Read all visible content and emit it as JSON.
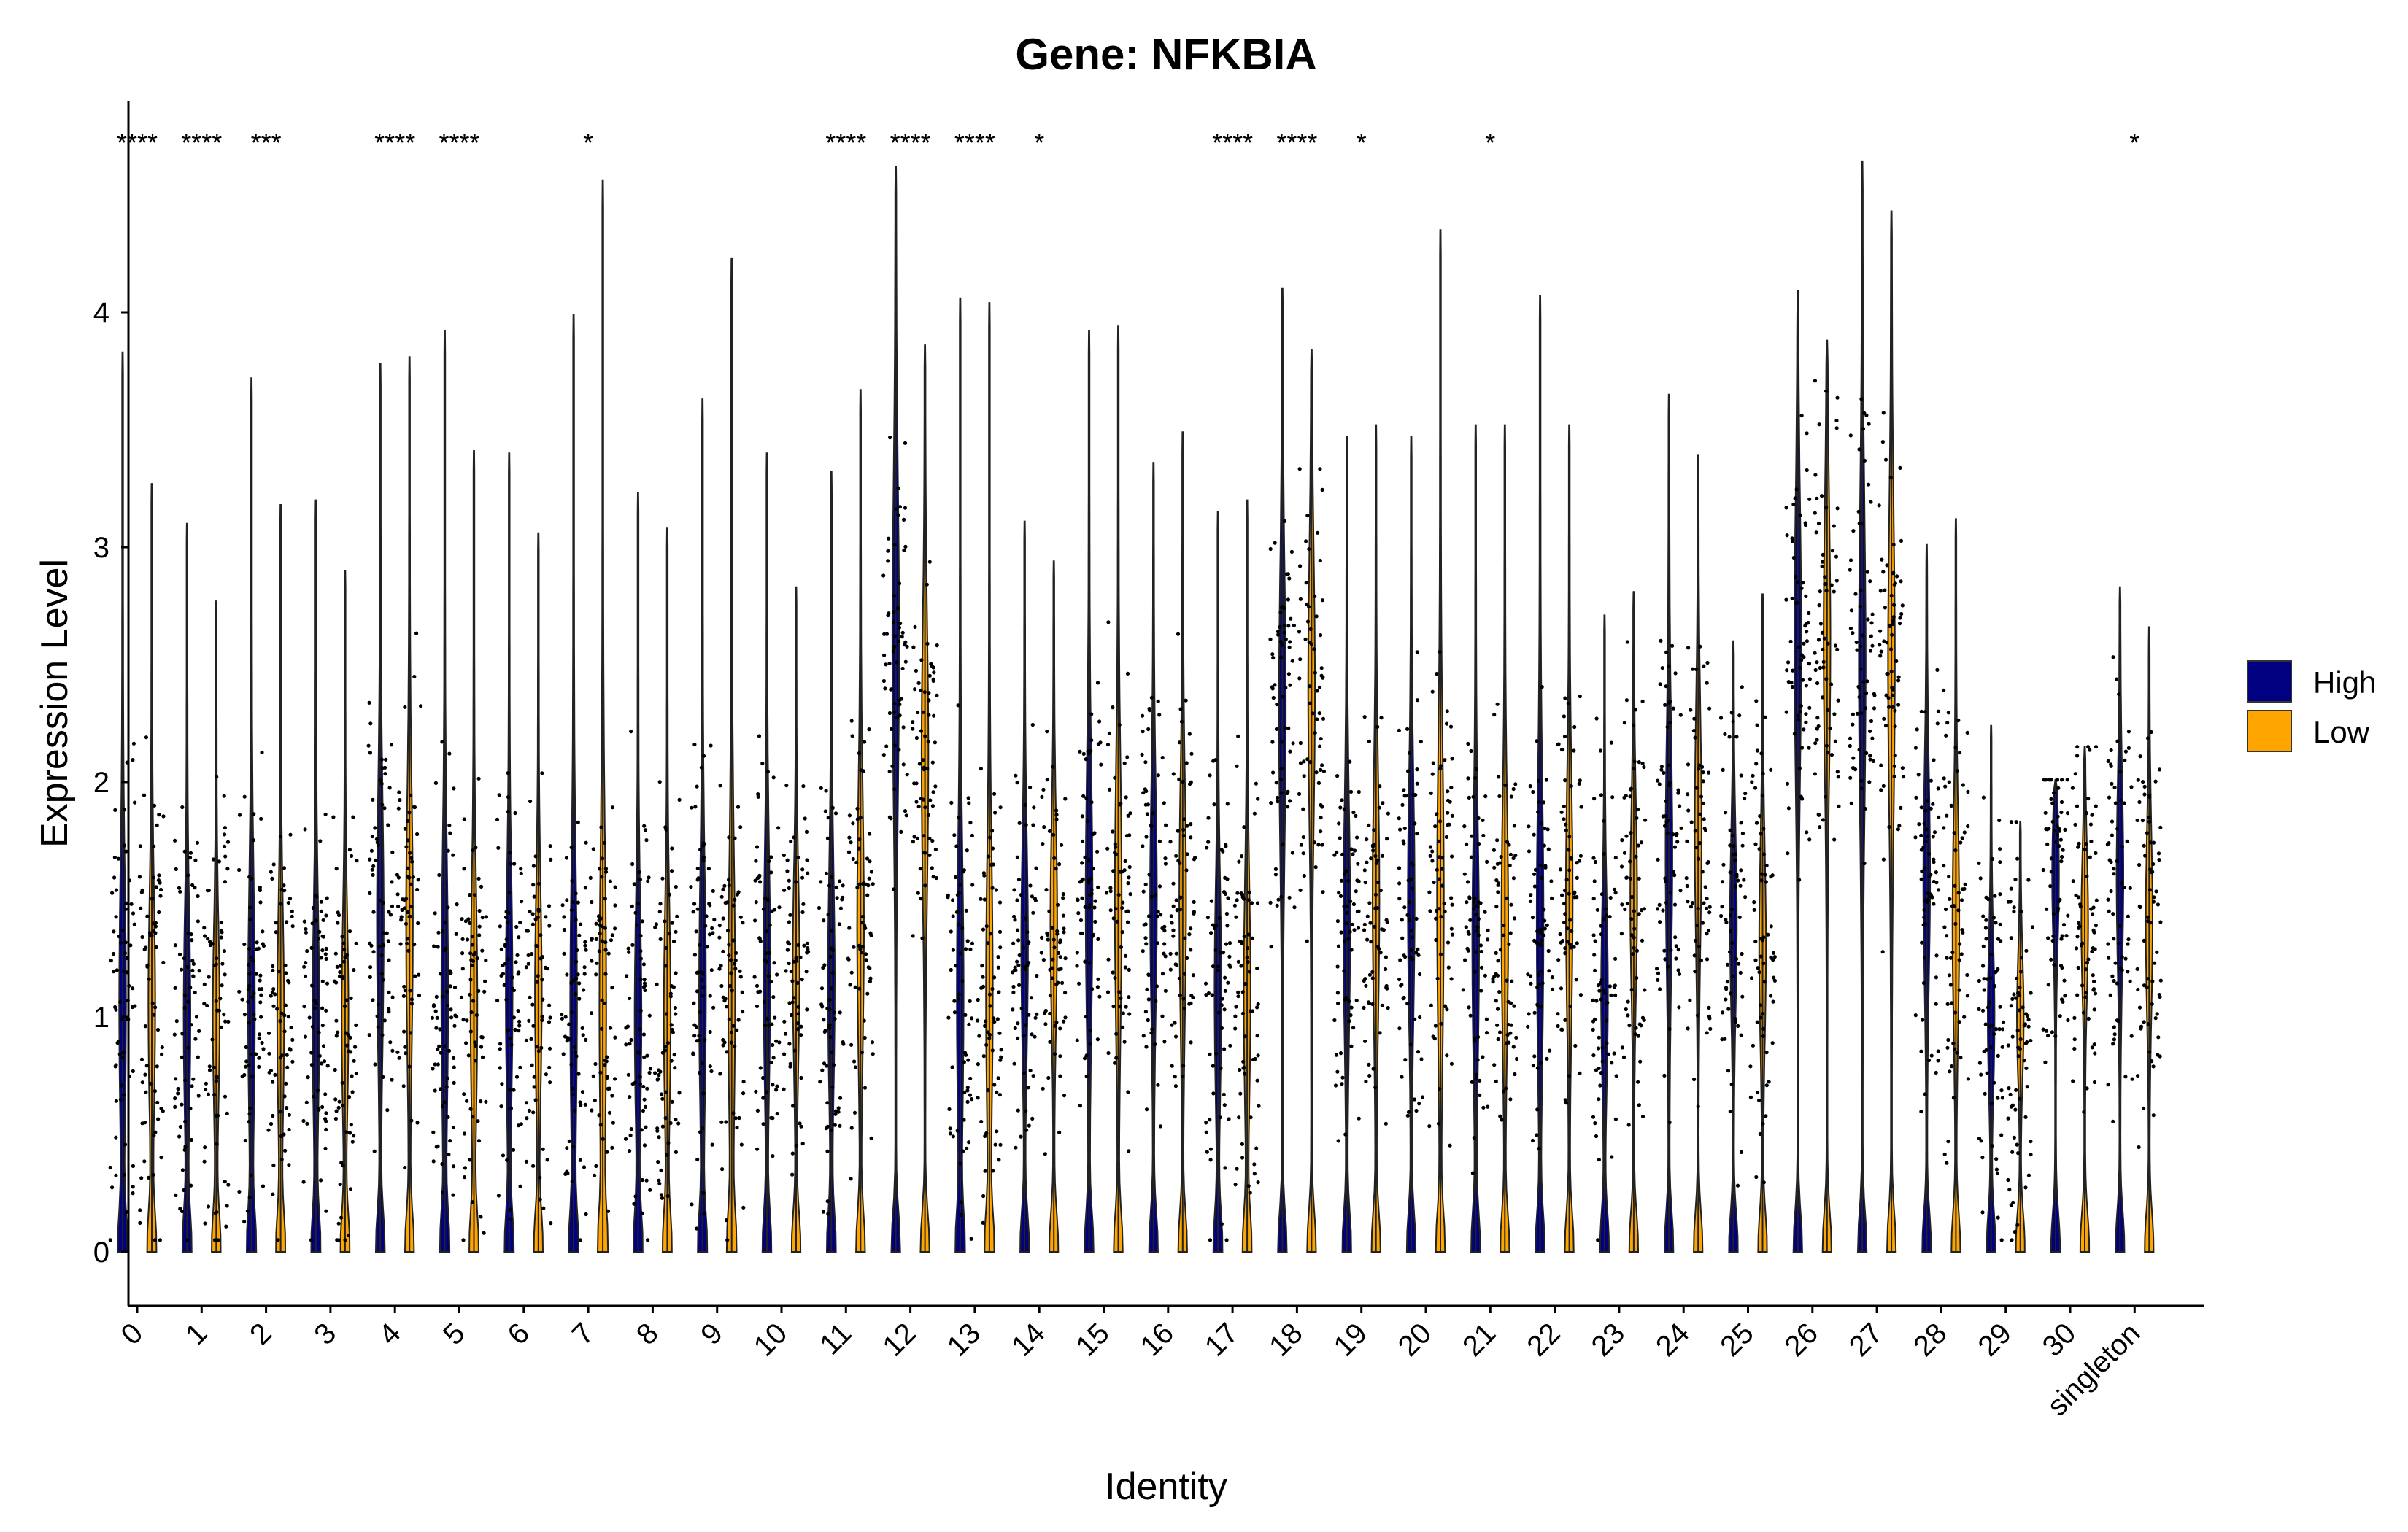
{
  "chart_data": {
    "type": "violin",
    "title": "Gene: NFKBIA",
    "xlabel": "Identity",
    "ylabel": "Expression Level",
    "ylim": [
      0,
      4.7
    ],
    "yticks": [
      0,
      1,
      2,
      3,
      4
    ],
    "grid": false,
    "legend_position": "right",
    "categories": [
      "0",
      "1",
      "2",
      "3",
      "4",
      "5",
      "6",
      "7",
      "8",
      "9",
      "10",
      "11",
      "12",
      "13",
      "14",
      "15",
      "16",
      "17",
      "18",
      "19",
      "20",
      "21",
      "22",
      "23",
      "24",
      "25",
      "26",
      "27",
      "28",
      "29",
      "30",
      "singleton"
    ],
    "series": [
      {
        "name": "High",
        "color": "#000080",
        "max": [
          3.83,
          3.1,
          3.72,
          3.2,
          3.78,
          3.92,
          3.4,
          3.99,
          3.23,
          3.63,
          3.4,
          3.32,
          4.62,
          4.06,
          3.11,
          3.92,
          3.36,
          3.15,
          4.1,
          3.47,
          3.47,
          3.52,
          4.07,
          2.71,
          3.65,
          2.6,
          4.09,
          4.64,
          3.01,
          2.24,
          2.01,
          2.83
        ],
        "median": [
          1.05,
          1.0,
          1.05,
          1.0,
          1.4,
          1.1,
          1.1,
          1.05,
          1.0,
          1.1,
          1.2,
          1.15,
          2.6,
          1.1,
          1.3,
          1.5,
          1.5,
          1.1,
          2.3,
          1.4,
          1.5,
          1.3,
          1.4,
          1.1,
          1.7,
          1.4,
          2.6,
          2.5,
          1.6,
          1.0,
          1.6,
          1.6
        ]
      },
      {
        "name": "Low",
        "color": "#FFA500",
        "max": [
          3.27,
          2.77,
          3.18,
          2.9,
          3.81,
          3.41,
          3.06,
          4.56,
          3.08,
          4.23,
          2.83,
          3.67,
          3.86,
          4.04,
          2.94,
          3.94,
          3.49,
          3.2,
          3.84,
          3.52,
          4.35,
          3.52,
          3.52,
          2.81,
          3.39,
          2.8,
          3.88,
          4.43,
          3.12,
          1.83,
          2.15,
          2.66
        ],
        "median": [
          1.05,
          1.0,
          1.0,
          1.0,
          1.4,
          1.05,
          1.1,
          1.05,
          1.0,
          1.1,
          1.2,
          1.4,
          2.1,
          1.1,
          1.4,
          1.5,
          1.5,
          1.1,
          2.4,
          1.5,
          1.5,
          1.4,
          1.5,
          1.5,
          1.8,
          1.3,
          2.6,
          2.5,
          1.4,
          1.0,
          1.4,
          1.4
        ]
      }
    ],
    "significance": [
      "****",
      "****",
      "***",
      "",
      "****",
      "****",
      "",
      "*",
      "",
      "",
      "",
      "****",
      "****",
      "****",
      "*",
      "",
      "",
      "****",
      "****",
      "*",
      "",
      "*",
      "",
      "",
      "",
      "",
      "",
      "",
      "",
      "",
      "",
      "*"
    ]
  },
  "legend": {
    "items": [
      {
        "label": "High",
        "color": "#000080"
      },
      {
        "label": "Low",
        "color": "#FFA500"
      }
    ]
  }
}
